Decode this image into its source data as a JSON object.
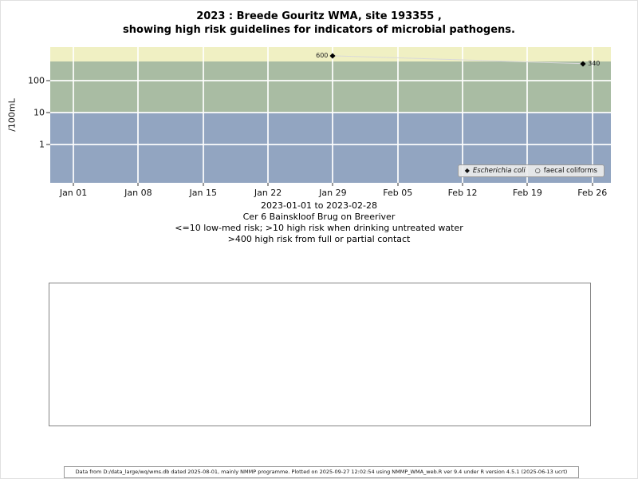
{
  "title": {
    "line1": "2023 : Breede Gouritz WMA, site 193355 ,",
    "line2": "showing high risk guidelines for indicators of microbial pathogens."
  },
  "caption": {
    "lines": [
      "2023-01-01 to 2023-02-28",
      "Cer 6 Bainskloof Brug on Breeriver",
      "<=10 low-med risk; >10 high risk when drinking untreated water",
      ">400 high risk from full or partial contact"
    ]
  },
  "footer": {
    "text": "Data from D:/data_large/wq/wms.db dated 2025-08-01, mainly NMMP programme. Plotted on 2025-09-27 12:02:54 using NMMP_WMA_web.R ver 9.4 under R version 4.5.1 (2025-06-13 ucrt)"
  },
  "chart_data": {
    "type": "scatter",
    "title": "2023 : Breede Gouritz WMA, site 193355 , showing high risk guidelines for indicators of microbial pathogens.",
    "xlabel": "",
    "ylabel": "/100mL",
    "y_scale": "log10",
    "ylim_log10": [
      -1.2,
      3.05
    ],
    "y_ticks": [
      1,
      10,
      100
    ],
    "x_range_days": [
      -2.5,
      58
    ],
    "x_ticks": [
      {
        "label": "Jan 01",
        "day": 0
      },
      {
        "label": "Jan 08",
        "day": 7
      },
      {
        "label": "Jan 15",
        "day": 14
      },
      {
        "label": "Jan 22",
        "day": 21
      },
      {
        "label": "Jan 29",
        "day": 28
      },
      {
        "label": "Feb 05",
        "day": 35
      },
      {
        "label": "Feb 12",
        "day": 42
      },
      {
        "label": "Feb 19",
        "day": 49
      },
      {
        "label": "Feb 26",
        "day": 56
      }
    ],
    "grid": "white lines at weekly x ticks and decade y ticks",
    "risk_bands": [
      {
        "name": "high-risk-contact",
        "min": 400,
        "max": 1200,
        "color": "#f0f0c3",
        "meaning": ">400 high risk from full or partial contact"
      },
      {
        "name": "high-risk-drinking",
        "min": 10,
        "max": 400,
        "color": "#a9bca3",
        "meaning": ">10 high risk when drinking untreated water"
      },
      {
        "name": "low-med-risk",
        "min": 0.06,
        "max": 10,
        "color": "#92a5c1",
        "meaning": "<=10 low-med risk"
      }
    ],
    "series": [
      {
        "name": "Escherichia coli",
        "marker": "diamond",
        "color": "#000000",
        "line_color": "#d9d9d9",
        "points": [
          {
            "day": 28,
            "value": 600,
            "label": "600",
            "label_side": "left"
          },
          {
            "day": 55,
            "value": 340,
            "label": "340",
            "label_side": "right"
          }
        ]
      }
    ],
    "legend": {
      "position": "bottom-right",
      "items": [
        {
          "marker": "◆",
          "label": "Escherichia coli",
          "italic": true
        },
        {
          "marker": "○",
          "label": "faecal coliforms",
          "italic": false
        }
      ]
    }
  }
}
